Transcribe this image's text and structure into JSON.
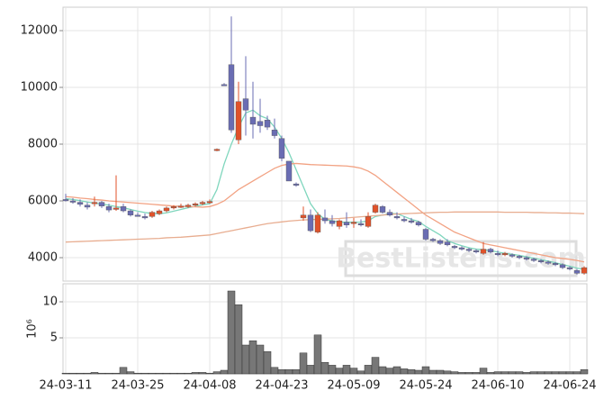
{
  "chart_data": [
    {
      "type": "candlestick",
      "categories": [
        "24-03-11",
        null,
        null,
        null,
        null,
        null,
        null,
        null,
        null,
        null,
        "24-03-25",
        null,
        null,
        null,
        null,
        null,
        null,
        null,
        null,
        null,
        "24-04-08",
        null,
        null,
        null,
        null,
        null,
        null,
        null,
        null,
        null,
        "24-04-23",
        null,
        null,
        null,
        null,
        null,
        null,
        null,
        null,
        null,
        "24-05-09",
        null,
        null,
        null,
        null,
        null,
        null,
        null,
        null,
        null,
        "24-05-24",
        null,
        null,
        null,
        null,
        null,
        null,
        null,
        null,
        null,
        "24-06-10",
        null,
        null,
        null,
        null,
        null,
        null,
        null,
        null,
        null,
        "24-06-24",
        null,
        null
      ],
      "open": [
        6050,
        6000,
        5950,
        5850,
        5900,
        5950,
        5800,
        5700,
        5800,
        5650,
        5500,
        5450,
        5450,
        5550,
        5650,
        5750,
        5800,
        5820,
        5850,
        5900,
        5950,
        7800,
        10100,
        10800,
        8150,
        9600,
        8950,
        8800,
        8850,
        8500,
        8200,
        7400,
        6600,
        5400,
        5500,
        4900,
        5400,
        5300,
        5100,
        5250,
        5200,
        5200,
        5100,
        5600,
        5800,
        5600,
        5450,
        5350,
        5300,
        5250,
        5000,
        4650,
        4600,
        4550,
        4400,
        4350,
        4300,
        4250,
        4150,
        4300,
        4150,
        4100,
        4100,
        4050,
        4000,
        3950,
        3900,
        3850,
        3800,
        3750,
        3650,
        3550,
        3450
      ],
      "high": [
        6250,
        6100,
        6050,
        5950,
        6150,
        6000,
        5900,
        6900,
        5900,
        5700,
        5600,
        5550,
        5650,
        5700,
        5800,
        5850,
        5900,
        5900,
        5950,
        6000,
        6050,
        7850,
        10150,
        12500,
        10200,
        11100,
        10200,
        9600,
        9000,
        8900,
        8300,
        7400,
        6650,
        5800,
        5700,
        5600,
        5700,
        5500,
        5350,
        5600,
        5400,
        5350,
        5600,
        5900,
        5850,
        5700,
        5600,
        5450,
        5400,
        5300,
        5050,
        4700,
        4650,
        4650,
        4450,
        4400,
        4350,
        4300,
        4550,
        4350,
        4250,
        4200,
        4150,
        4100,
        4050,
        4000,
        3950,
        3900,
        3850,
        3800,
        3700,
        3600,
        3700
      ],
      "low": [
        5980,
        5900,
        5800,
        5700,
        5800,
        5750,
        5600,
        5650,
        5600,
        5450,
        5450,
        5350,
        5400,
        5500,
        5600,
        5700,
        5750,
        5750,
        5800,
        5850,
        5900,
        7750,
        10050,
        8400,
        8000,
        8300,
        8200,
        8400,
        8500,
        8200,
        7400,
        6700,
        6500,
        5300,
        4900,
        4850,
        5200,
        5100,
        5000,
        5050,
        5050,
        5100,
        5050,
        5550,
        5550,
        5450,
        5350,
        5250,
        5200,
        5100,
        4600,
        4550,
        4450,
        4400,
        4300,
        4250,
        4200,
        4150,
        4100,
        4150,
        4050,
        4050,
        4000,
        3950,
        3900,
        3850,
        3800,
        3750,
        3700,
        3600,
        3550,
        3400,
        3400
      ],
      "close": [
        6020,
        5980,
        5880,
        5780,
        5950,
        5820,
        5680,
        5750,
        5650,
        5500,
        5480,
        5400,
        5600,
        5650,
        5750,
        5800,
        5820,
        5850,
        5900,
        5950,
        5980,
        7820,
        10080,
        8500,
        9500,
        9200,
        8700,
        8650,
        8600,
        8300,
        7500,
        6700,
        6550,
        5500,
        4950,
        5500,
        5300,
        5200,
        5300,
        5150,
        5250,
        5150,
        5450,
        5850,
        5600,
        5500,
        5400,
        5300,
        5250,
        5150,
        4650,
        4600,
        4500,
        4450,
        4350,
        4300,
        4250,
        4200,
        4300,
        4200,
        4100,
        4150,
        4050,
        4000,
        3950,
        3900,
        3850,
        3800,
        3750,
        3650,
        3600,
        3450,
        3650
      ],
      "up_color": "#e0522a",
      "down_color": "#6a6db3",
      "series": [
        {
          "color": "#7fd6bd",
          "values": [
            6080,
            6050,
            6010,
            5960,
            5920,
            5890,
            5850,
            5800,
            5760,
            5700,
            5640,
            5590,
            5560,
            5550,
            5580,
            5640,
            5700,
            5760,
            5810,
            5860,
            5900,
            6400,
            7300,
            8000,
            8600,
            9100,
            9200,
            9000,
            8900,
            8600,
            8200,
            7700,
            7100,
            6500,
            5900,
            5550,
            5350,
            5300,
            5250,
            5250,
            5250,
            5250,
            5300,
            5450,
            5500,
            5550,
            5550,
            5450,
            5350,
            5280,
            5100,
            4950,
            4800,
            4600,
            4500,
            4420,
            4350,
            4300,
            4280,
            4250,
            4200,
            4150,
            4120,
            4080,
            4030,
            3980,
            3930,
            3880,
            3820,
            3760,
            3700,
            3630,
            3590
          ]
        },
        {
          "color": "#f2a283",
          "values": [
            6150,
            6130,
            6100,
            6080,
            6050,
            6030,
            6000,
            5980,
            5960,
            5940,
            5920,
            5900,
            5880,
            5860,
            5840,
            5820,
            5810,
            5800,
            5790,
            5780,
            5800,
            5880,
            6000,
            6200,
            6400,
            6550,
            6700,
            6850,
            7000,
            7150,
            7250,
            7300,
            7320,
            7300,
            7280,
            7270,
            7260,
            7250,
            7240,
            7230,
            7200,
            7150,
            7050,
            6900,
            6700,
            6500,
            6300,
            6100,
            5900,
            5700,
            5500,
            5350,
            5200,
            5050,
            4900,
            4800,
            4700,
            4600,
            4500,
            4450,
            4400,
            4350,
            4300,
            4250,
            4200,
            4150,
            4100,
            4050,
            4000,
            3970,
            3940,
            3900,
            3850
          ]
        },
        {
          "color": "#e8ad90",
          "values": [
            4550,
            4560,
            4570,
            4580,
            4590,
            4600,
            4610,
            4620,
            4630,
            4640,
            4650,
            4660,
            4670,
            4680,
            4700,
            4710,
            4720,
            4740,
            4760,
            4780,
            4800,
            4850,
            4900,
            4950,
            5000,
            5050,
            5100,
            5150,
            5200,
            5230,
            5260,
            5290,
            5310,
            5330,
            5340,
            5350,
            5360,
            5370,
            5380,
            5400,
            5420,
            5440,
            5460,
            5480,
            5500,
            5520,
            5540,
            5550,
            5560,
            5570,
            5580,
            5590,
            5600,
            5600,
            5610,
            5610,
            5610,
            5610,
            5610,
            5610,
            5610,
            5600,
            5600,
            5600,
            5600,
            5590,
            5590,
            5580,
            5580,
            5570,
            5570,
            5560,
            5550
          ]
        }
      ],
      "ylim": [
        3175,
        12825
      ],
      "yticks": [
        4000,
        6000,
        8000,
        10000,
        12000
      ],
      "grid": true,
      "watermark": "BestListens.com"
    },
    {
      "type": "bar",
      "ylabel": "10⁶",
      "color": "#777777",
      "values": [
        0.1,
        0.1,
        0.1,
        0.1,
        0.2,
        0.1,
        0.1,
        0.1,
        0.9,
        0.3,
        0.1,
        0.1,
        0.1,
        0.1,
        0.1,
        0.1,
        0.1,
        0.1,
        0.2,
        0.2,
        0.1,
        0.3,
        0.5,
        11.5,
        9.6,
        4.0,
        4.6,
        4.0,
        3.1,
        0.9,
        0.6,
        0.6,
        0.6,
        2.9,
        1.2,
        5.4,
        1.6,
        1.2,
        0.8,
        1.2,
        0.8,
        0.4,
        1.2,
        2.3,
        1.0,
        0.8,
        1.0,
        0.7,
        0.6,
        0.5,
        1.0,
        0.5,
        0.5,
        0.4,
        0.3,
        0.2,
        0.2,
        0.2,
        0.8,
        0.2,
        0.3,
        0.3,
        0.3,
        0.3,
        0.2,
        0.3,
        0.3,
        0.3,
        0.3,
        0.3,
        0.3,
        0.3,
        0.6
      ],
      "ylim": [
        0,
        12.5
      ],
      "yticks": [
        5,
        10
      ],
      "grid": true
    }
  ]
}
